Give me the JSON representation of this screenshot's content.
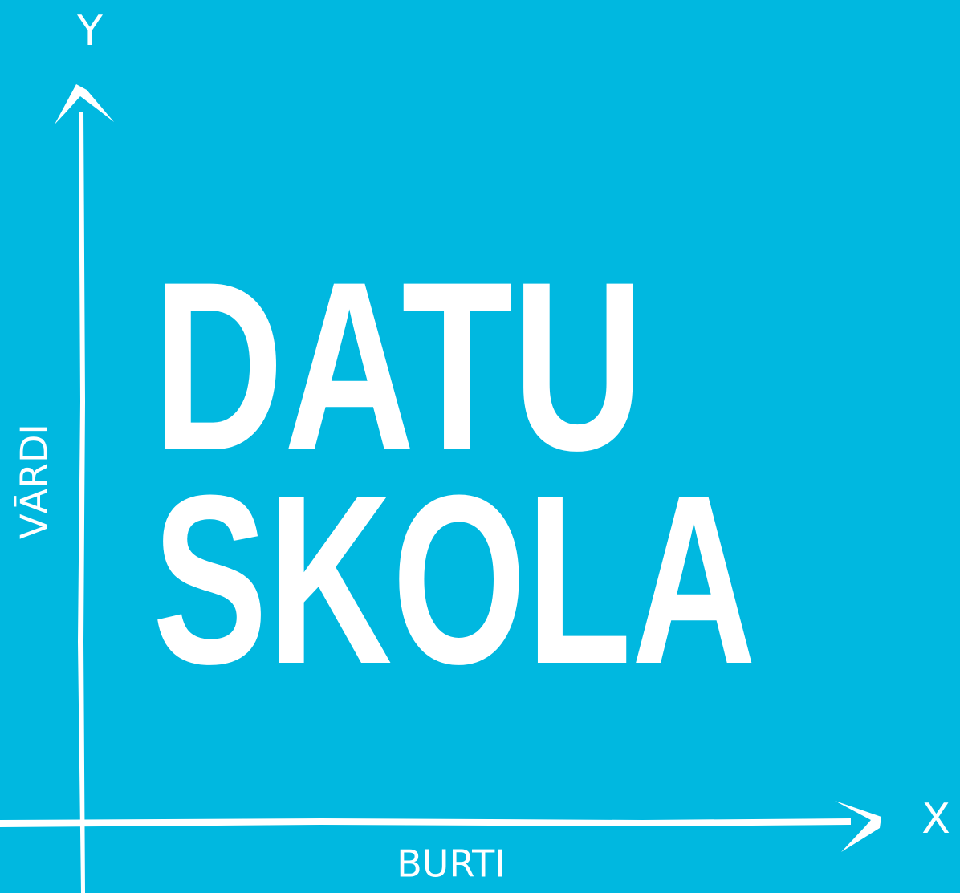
{
  "axes": {
    "y_label": "Y",
    "x_label": "X",
    "y_title": "VĀRDI",
    "x_title": "BURTI"
  },
  "title": {
    "line1": "DATU",
    "line2": "SKOLA"
  }
}
